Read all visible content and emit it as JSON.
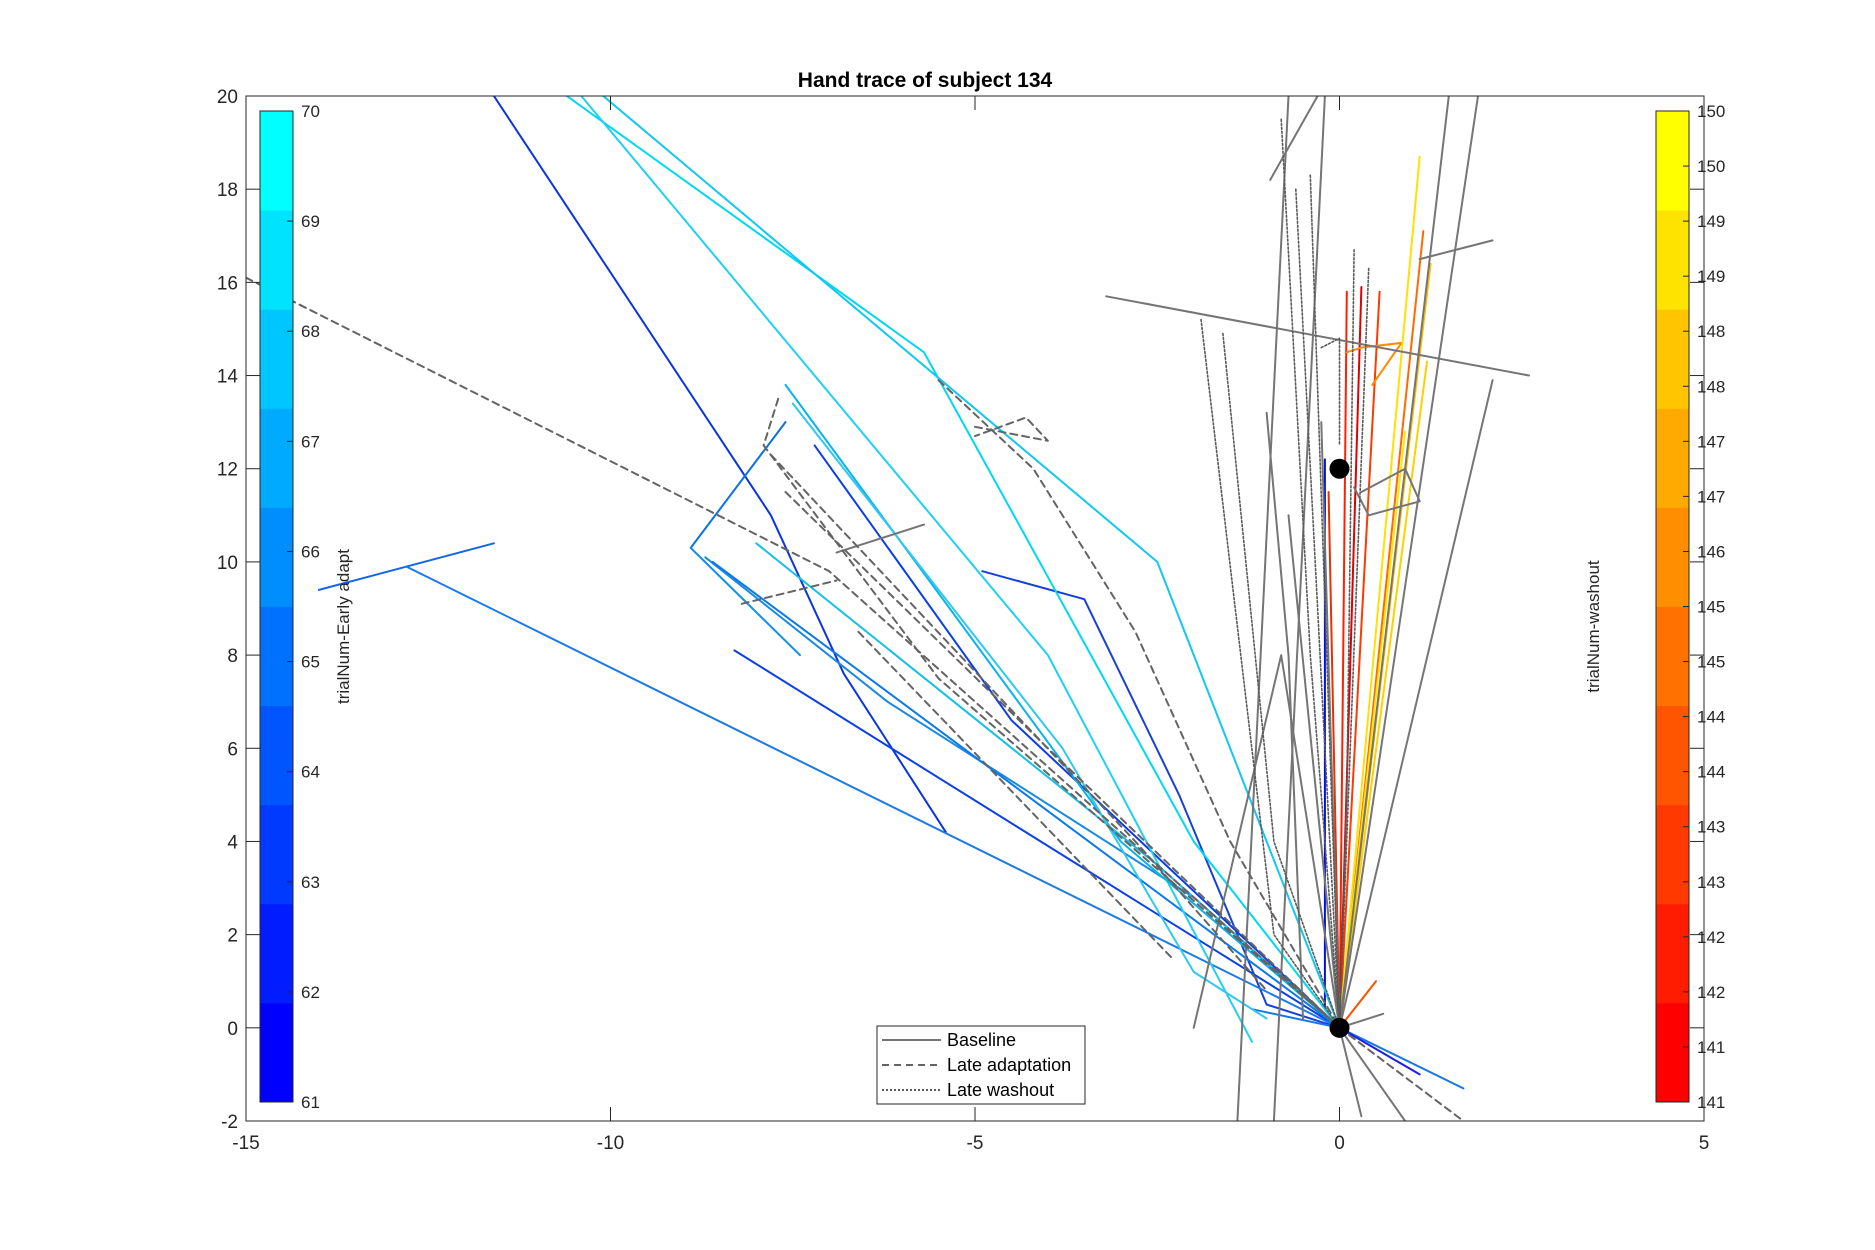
{
  "chart_data": {
    "type": "line",
    "title": "Hand trace of subject 134",
    "xlabel": "",
    "ylabel": "",
    "xlim": [
      -15,
      5
    ],
    "ylim": [
      -2,
      20
    ],
    "grid": false,
    "x_ticks": [
      "-15",
      "-10",
      "-5",
      "0",
      "5"
    ],
    "y_ticks": [
      "-2",
      "0",
      "2",
      "4",
      "6",
      "8",
      "10",
      "12",
      "14",
      "16",
      "18",
      "20"
    ],
    "x_tick_values": [
      -15,
      -10,
      -5,
      0,
      5
    ],
    "y_tick_values": [
      -2,
      0,
      2,
      4,
      6,
      8,
      10,
      12,
      14,
      16,
      18,
      20
    ],
    "legend": {
      "placement": "bottom",
      "entries": [
        {
          "label": "Baseline",
          "style": "solid"
        },
        {
          "label": "Late adaptation",
          "style": "dashed"
        },
        {
          "label": "Late washout",
          "style": "dotted"
        }
      ]
    },
    "markers": [
      {
        "name": "start",
        "x": 0,
        "y": 0
      },
      {
        "name": "target",
        "x": 0,
        "y": 12
      }
    ],
    "colorbars": [
      {
        "name": "left",
        "label": "trialNum-Early adapt",
        "colormap": "blue-to-cyan",
        "ticks": [
          "61",
          "62",
          "63",
          "64",
          "65",
          "66",
          "67",
          "68",
          "69",
          "70"
        ],
        "range": [
          61,
          70
        ]
      },
      {
        "name": "right",
        "label": "trialNum-washout",
        "colormap": "red-to-yellow",
        "ticks": [
          "141",
          "141",
          "142",
          "142",
          "143",
          "143",
          "144",
          "144",
          "145",
          "145",
          "146",
          "147",
          "147",
          "148",
          "148",
          "149",
          "149",
          "150",
          "150"
        ],
        "range": [
          141,
          150
        ]
      }
    ],
    "series": [
      {
        "group": "early-adapt",
        "color": "#0a34e0",
        "points": [
          [
            -11.6,
            20
          ],
          [
            -7.8,
            11.0
          ],
          [
            -6.8,
            7.6
          ],
          [
            -5.4,
            4.2
          ]
        ]
      },
      {
        "group": "early-adapt",
        "color": "#0a40e8",
        "points": [
          [
            -8.3,
            8.1
          ],
          [
            0,
            0
          ]
        ]
      },
      {
        "group": "early-adapt",
        "color": "#0a3ee6",
        "points": [
          [
            -7.2,
            12.5
          ],
          [
            -4.5,
            6.6
          ],
          [
            0,
            0
          ]
        ]
      },
      {
        "group": "early-adapt",
        "color": "#1840d8",
        "points": [
          [
            -4.9,
            9.8
          ],
          [
            -3.5,
            9.2
          ],
          [
            -2.2,
            5.0
          ],
          [
            -1.0,
            0.5
          ],
          [
            0,
            0
          ]
        ]
      },
      {
        "group": "early-adapt",
        "color": "#1466e8",
        "points": [
          [
            -14.0,
            9.4
          ],
          [
            -11.6,
            10.4
          ]
        ]
      },
      {
        "group": "early-adapt",
        "color": "#1a7ae8",
        "points": [
          [
            -12.8,
            9.9
          ],
          [
            0,
            0
          ]
        ]
      },
      {
        "group": "early-adapt",
        "color": "#0a72e8",
        "points": [
          [
            -8.9,
            10.3
          ],
          [
            -7.6,
            13.0
          ]
        ]
      },
      {
        "group": "early-adapt",
        "color": "#1490e8",
        "points": [
          [
            -8.9,
            10.3
          ],
          [
            -7.4,
            8.0
          ]
        ]
      },
      {
        "group": "early-adapt",
        "color": "#1a8ae0",
        "points": [
          [
            -8.7,
            10.1
          ],
          [
            -6.2,
            7.0
          ],
          [
            -2.0,
            2.8
          ],
          [
            0,
            0
          ]
        ]
      },
      {
        "group": "early-adapt",
        "color": "#0a7ae8",
        "points": [
          [
            -8.6,
            10.0
          ],
          [
            0,
            0
          ]
        ]
      },
      {
        "group": "early-adapt",
        "color": "#1478e8",
        "points": [
          [
            -1.2,
            0.4
          ],
          [
            0,
            0
          ],
          [
            1.7,
            -1.3
          ]
        ]
      },
      {
        "group": "early-adapt",
        "color": "#0010e0",
        "points": [
          [
            -0.2,
            12.2
          ],
          [
            -0.2,
            0.4
          ],
          [
            0,
            0
          ]
        ]
      },
      {
        "group": "early-adapt",
        "color": "#2020e0",
        "points": [
          [
            0,
            0
          ],
          [
            1.1,
            -1.0
          ]
        ]
      },
      {
        "group": "early-adapt",
        "color": "#00d8f0",
        "points": [
          [
            -10.6,
            20
          ],
          [
            -5.7,
            14.5
          ],
          [
            -2.0,
            4.0
          ],
          [
            0,
            0
          ]
        ]
      },
      {
        "group": "early-adapt",
        "color": "#10c8f0",
        "points": [
          [
            -10.1,
            20
          ],
          [
            -2.5,
            10.0
          ],
          [
            0,
            0
          ]
        ]
      },
      {
        "group": "early-adapt",
        "color": "#20d0f0",
        "points": [
          [
            -10.4,
            20
          ],
          [
            -4.0,
            8.0
          ],
          [
            -1.2,
            -0.3
          ]
        ]
      },
      {
        "group": "early-adapt",
        "color": "#08b4e8",
        "points": [
          [
            -7.6,
            13.8
          ],
          [
            -3.0,
            4.0
          ],
          [
            0,
            0
          ]
        ]
      },
      {
        "group": "early-adapt",
        "color": "#14c0e8",
        "points": [
          [
            -8.0,
            10.4
          ],
          [
            -2.5,
            3.5
          ],
          [
            0,
            0
          ]
        ]
      },
      {
        "group": "early-adapt",
        "color": "#30c8f0",
        "points": [
          [
            -7.5,
            13.4
          ],
          [
            -3.8,
            6.0
          ],
          [
            -2.0,
            1.2
          ],
          [
            -1.0,
            0.2
          ]
        ]
      },
      {
        "group": "washout",
        "color": "#ff2000",
        "points": [
          [
            0,
            0
          ],
          [
            0.1,
            15.8
          ]
        ]
      },
      {
        "group": "washout",
        "color": "#e00000",
        "points": [
          [
            0,
            0
          ],
          [
            0.3,
            15.9
          ]
        ]
      },
      {
        "group": "washout",
        "color": "#ff3a00",
        "points": [
          [
            0,
            0
          ],
          [
            0.55,
            15.8
          ]
        ]
      },
      {
        "group": "washout",
        "color": "#e83000",
        "points": [
          [
            0,
            0
          ],
          [
            -0.15,
            11.5
          ]
        ]
      },
      {
        "group": "washout",
        "color": "#ff5000",
        "points": [
          [
            0,
            0
          ],
          [
            0.5,
            1.0
          ]
        ]
      },
      {
        "group": "washout",
        "color": "#ff6a00",
        "points": [
          [
            0,
            0
          ],
          [
            1.15,
            17.1
          ]
        ]
      },
      {
        "group": "washout",
        "color": "#ff8a00",
        "points": [
          [
            0.1,
            14.5
          ],
          [
            0.3,
            14.6
          ],
          [
            0.85,
            14.7
          ],
          [
            0.45,
            13.8
          ]
        ]
      },
      {
        "group": "washout",
        "color": "#ffc000",
        "points": [
          [
            0,
            0
          ],
          [
            1.25,
            16.4
          ]
        ]
      },
      {
        "group": "washout",
        "color": "#ffe000",
        "points": [
          [
            0,
            0
          ],
          [
            1.1,
            18.7
          ]
        ]
      },
      {
        "group": "washout",
        "color": "#ffd000",
        "points": [
          [
            0,
            0
          ],
          [
            1.2,
            14.3
          ]
        ]
      },
      {
        "group": "washout",
        "color": "#ffe800",
        "points": [
          [
            0,
            0
          ],
          [
            0.9,
            12.8
          ]
        ]
      },
      {
        "group": "baseline",
        "color": "#757575",
        "points": [
          [
            -3.2,
            15.7
          ],
          [
            2.6,
            14.0
          ]
        ]
      },
      {
        "group": "baseline",
        "color": "#757575",
        "points": [
          [
            -0.95,
            18.2
          ],
          [
            -0.3,
            20
          ]
        ]
      },
      {
        "group": "baseline",
        "color": "#757575",
        "points": [
          [
            1.1,
            16.5
          ],
          [
            2.1,
            16.9
          ]
        ]
      },
      {
        "group": "baseline",
        "color": "#757575",
        "points": [
          [
            -1.4,
            -2
          ],
          [
            -0.7,
            20
          ]
        ]
      },
      {
        "group": "baseline",
        "color": "#757575",
        "points": [
          [
            -0.9,
            -2
          ],
          [
            -0.2,
            20
          ]
        ]
      },
      {
        "group": "baseline",
        "color": "#757575",
        "points": [
          [
            0,
            0
          ],
          [
            1.5,
            20
          ]
        ]
      },
      {
        "group": "baseline",
        "color": "#757575",
        "points": [
          [
            0,
            0
          ],
          [
            1.9,
            20
          ]
        ]
      },
      {
        "group": "baseline",
        "color": "#757575",
        "points": [
          [
            0,
            0
          ],
          [
            2.1,
            13.9
          ]
        ]
      },
      {
        "group": "baseline",
        "color": "#757575",
        "points": [
          [
            -2.0,
            0
          ],
          [
            -0.8,
            8.0
          ],
          [
            0,
            0
          ]
        ]
      },
      {
        "group": "baseline",
        "color": "#757575",
        "points": [
          [
            -1.0,
            13.2
          ],
          [
            -0.7,
            8.0
          ],
          [
            -0.5,
            0.2
          ]
        ]
      },
      {
        "group": "baseline",
        "color": "#757575",
        "points": [
          [
            0.3,
            11.5
          ],
          [
            0.9,
            12.0
          ],
          [
            1.1,
            11.3
          ],
          [
            0.4,
            11.0
          ],
          [
            0.2,
            11.6
          ]
        ]
      },
      {
        "group": "baseline",
        "color": "#757575",
        "points": [
          [
            0,
            0
          ],
          [
            -0.7,
            11.0
          ]
        ]
      },
      {
        "group": "baseline",
        "color": "#757575",
        "points": [
          [
            0,
            0
          ],
          [
            -0.25,
            13.0
          ]
        ]
      },
      {
        "group": "baseline",
        "color": "#757575",
        "points": [
          [
            0,
            0
          ],
          [
            0.9,
            -2
          ]
        ]
      },
      {
        "group": "baseline",
        "color": "#757575",
        "points": [
          [
            0,
            0
          ],
          [
            0.3,
            -1.9
          ]
        ]
      },
      {
        "group": "baseline",
        "color": "#757575",
        "points": [
          [
            -0.5,
            0.7
          ],
          [
            0,
            0
          ],
          [
            0.6,
            0.3
          ]
        ]
      },
      {
        "group": "baseline",
        "color": "#757575",
        "points": [
          [
            -6.9,
            10.2
          ],
          [
            -5.7,
            10.8
          ]
        ]
      },
      {
        "group": "late-adaptation",
        "color": "#646464",
        "points": [
          [
            -15,
            16.1
          ],
          [
            -7.0,
            9.8
          ],
          [
            0,
            0
          ]
        ]
      },
      {
        "group": "late-adaptation",
        "color": "#646464",
        "points": [
          [
            -7.7,
            13.5
          ],
          [
            -7.9,
            12.5
          ],
          [
            -5.5,
            7.5
          ],
          [
            0,
            0
          ]
        ]
      },
      {
        "group": "late-adaptation",
        "color": "#646464",
        "points": [
          [
            -5.5,
            13.9
          ],
          [
            -4.2,
            12.0
          ],
          [
            -2.8,
            8.5
          ],
          [
            -1.5,
            4.0
          ],
          [
            0,
            0
          ]
        ]
      },
      {
        "group": "late-adaptation",
        "color": "#646464",
        "points": [
          [
            -5.0,
            12.9
          ],
          [
            -4.0,
            12.6
          ],
          [
            -4.3,
            13.1
          ],
          [
            -5.0,
            12.7
          ]
        ]
      },
      {
        "group": "late-adaptation",
        "color": "#646464",
        "points": [
          [
            -8.2,
            9.1
          ],
          [
            -6.9,
            9.6
          ]
        ]
      },
      {
        "group": "late-adaptation",
        "color": "#646464",
        "points": [
          [
            -7.6,
            11.5
          ],
          [
            -4.0,
            6.0
          ],
          [
            0,
            0
          ]
        ]
      },
      {
        "group": "late-adaptation",
        "color": "#646464",
        "points": [
          [
            -7.8,
            12.3
          ],
          [
            -2.8,
            4.0
          ],
          [
            -1.0,
            0.8
          ]
        ]
      },
      {
        "group": "late-adaptation",
        "color": "#646464",
        "points": [
          [
            -6.6,
            8.5
          ],
          [
            -2.3,
            1.5
          ]
        ]
      },
      {
        "group": "late-adaptation",
        "color": "#646464",
        "points": [
          [
            0,
            0
          ],
          [
            1.7,
            -2
          ]
        ]
      },
      {
        "group": "late-washout",
        "color": "#5a5a5a",
        "points": [
          [
            -1.9,
            15.2
          ],
          [
            -0.9,
            2.0
          ],
          [
            0,
            0
          ]
        ]
      },
      {
        "group": "late-washout",
        "color": "#5a5a5a",
        "points": [
          [
            -0.8,
            19.5
          ],
          [
            -0.4,
            8.0
          ],
          [
            0,
            0
          ]
        ]
      },
      {
        "group": "late-washout",
        "color": "#5a5a5a",
        "points": [
          [
            -0.6,
            18.0
          ],
          [
            -0.2,
            6.0
          ],
          [
            0,
            0
          ]
        ]
      },
      {
        "group": "late-washout",
        "color": "#5a5a5a",
        "points": [
          [
            -0.4,
            18.3
          ],
          [
            0,
            0
          ]
        ]
      },
      {
        "group": "late-washout",
        "color": "#5a5a5a",
        "points": [
          [
            0.2,
            16.7
          ],
          [
            0.1,
            5.0
          ],
          [
            0,
            0
          ]
        ]
      },
      {
        "group": "late-washout",
        "color": "#5a5a5a",
        "points": [
          [
            0.4,
            16.3
          ],
          [
            0,
            0
          ]
        ]
      },
      {
        "group": "late-washout",
        "color": "#5a5a5a",
        "points": [
          [
            -1.6,
            14.9
          ],
          [
            -0.9,
            4.0
          ],
          [
            0,
            0
          ]
        ]
      },
      {
        "group": "late-washout",
        "color": "#5a5a5a",
        "points": [
          [
            -0.25,
            14.6
          ],
          [
            0.0,
            14.8
          ],
          [
            0.0,
            12.5
          ]
        ]
      }
    ]
  }
}
